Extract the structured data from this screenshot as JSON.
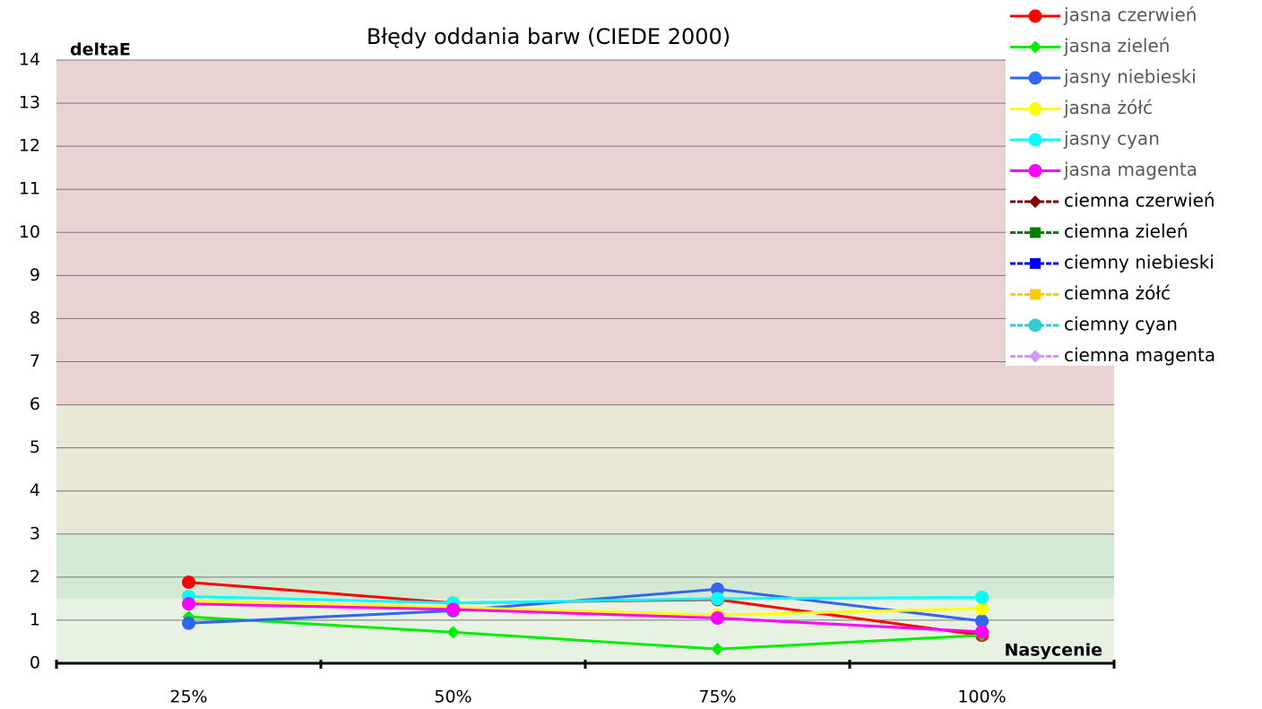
{
  "chart_data": {
    "type": "line",
    "title": "Błędy oddania barw (CIEDE 2000)",
    "y_label": "deltaE",
    "x_label": "Nasycenie",
    "categories": [
      "25%",
      "50%",
      "75%",
      "100%"
    ],
    "ylim": [
      0,
      14
    ],
    "yticks": [
      0,
      1,
      2,
      3,
      4,
      5,
      6,
      7,
      8,
      9,
      10,
      11,
      12,
      13,
      14
    ],
    "grid": true,
    "legend": "top-right",
    "bands": [
      {
        "from": 6,
        "to": 14,
        "color": "#ead2d3"
      },
      {
        "from": 3,
        "to": 6,
        "color": "#e9e7d5"
      },
      {
        "from": 1.5,
        "to": 3,
        "color": "#d4e9d3"
      },
      {
        "from": 0,
        "to": 1.5,
        "color": "#e7f2e3"
      }
    ],
    "series": [
      {
        "name": "jasna czerwień",
        "color": "#ff0000",
        "marker": "circle",
        "values": [
          1.88,
          1.4,
          1.48,
          0.65
        ]
      },
      {
        "name": "jasna zieleń",
        "color": "#00ee00",
        "marker": "diamond",
        "values": [
          1.08,
          0.72,
          0.33,
          0.65
        ]
      },
      {
        "name": "jasny niebieski",
        "color": "#3366ee",
        "marker": "circle",
        "values": [
          0.93,
          1.22,
          1.72,
          0.98
        ]
      },
      {
        "name": "jasna żółć",
        "color": "#ffff00",
        "marker": "circle",
        "values": [
          1.45,
          1.3,
          1.12,
          1.27
        ]
      },
      {
        "name": "jasny cyan",
        "color": "#00ffff",
        "marker": "circle",
        "values": [
          1.55,
          1.4,
          1.5,
          1.53
        ]
      },
      {
        "name": "jasna magenta",
        "color": "#ff00ff",
        "marker": "circle",
        "values": [
          1.38,
          1.25,
          1.05,
          0.73
        ]
      },
      {
        "name": "ciemna czerwień",
        "color": "#800000",
        "marker": "diamond",
        "dashed": true,
        "values": [
          null,
          null,
          null,
          null
        ]
      },
      {
        "name": "ciemna zieleń",
        "color": "#008000",
        "marker": "square",
        "dashed": true,
        "values": [
          null,
          null,
          null,
          null
        ]
      },
      {
        "name": "ciemny niebieski",
        "color": "#0000ff",
        "marker": "square",
        "dashed": true,
        "values": [
          null,
          null,
          null,
          null
        ]
      },
      {
        "name": "ciemna żółć",
        "color": "#ffcc00",
        "marker": "square",
        "dashed": true,
        "values": [
          null,
          null,
          null,
          null
        ]
      },
      {
        "name": "ciemny cyan",
        "color": "#33cccc",
        "marker": "circle",
        "dashed": true,
        "values": [
          null,
          null,
          null,
          null
        ]
      },
      {
        "name": "ciemna magenta",
        "color": "#cc99ff",
        "marker": "diamond",
        "dashed": true,
        "values": [
          null,
          null,
          null,
          null
        ]
      }
    ]
  }
}
